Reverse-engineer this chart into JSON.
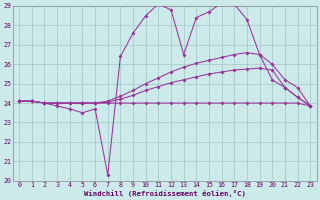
{
  "xlabel": "Windchill (Refroidissement éolien,°C)",
  "bg_color": "#cceaea",
  "grid_color": "#aacccc",
  "line_color": "#993399",
  "xlim": [
    -0.5,
    23.5
  ],
  "ylim": [
    20,
    29
  ],
  "xtick_labels": [
    "0",
    "1",
    "2",
    "3",
    "4",
    "5",
    "6",
    "7",
    "8",
    "9",
    "10",
    "11",
    "12",
    "13",
    "14",
    "15",
    "16",
    "17",
    "18",
    "19",
    "20",
    "21",
    "22",
    "23"
  ],
  "xtick_vals": [
    0,
    1,
    2,
    3,
    4,
    5,
    6,
    7,
    8,
    9,
    10,
    11,
    12,
    13,
    14,
    15,
    16,
    17,
    18,
    19,
    20,
    21,
    22,
    23
  ],
  "yticks": [
    20,
    21,
    22,
    23,
    24,
    25,
    26,
    27,
    28,
    29
  ],
  "series": [
    {
      "x": [
        0,
        1,
        2,
        3,
        4,
        5,
        6,
        7,
        8,
        9,
        10,
        11,
        12,
        13,
        14,
        15,
        16,
        17,
        18,
        19,
        20,
        21,
        22,
        23
      ],
      "y": [
        24.1,
        24.1,
        24.0,
        24.0,
        24.0,
        24.0,
        24.0,
        24.0,
        24.0,
        24.0,
        24.0,
        24.0,
        24.0,
        24.0,
        24.0,
        24.0,
        24.0,
        24.0,
        24.0,
        24.0,
        24.0,
        24.0,
        24.0,
        23.85
      ]
    },
    {
      "x": [
        0,
        1,
        2,
        3,
        4,
        5,
        6,
        7,
        8,
        9,
        10,
        11,
        12,
        13,
        14,
        15,
        16,
        17,
        18,
        19,
        20,
        21,
        22,
        23
      ],
      "y": [
        24.1,
        24.1,
        24.0,
        23.85,
        23.7,
        23.5,
        23.7,
        20.3,
        26.4,
        27.6,
        28.5,
        29.1,
        28.8,
        26.5,
        28.4,
        28.7,
        29.15,
        29.1,
        28.3,
        26.5,
        25.2,
        24.8,
        24.3,
        23.85
      ]
    },
    {
      "x": [
        0,
        1,
        2,
        3,
        4,
        5,
        6,
        7,
        8,
        9,
        10,
        11,
        12,
        13,
        14,
        15,
        16,
        17,
        18,
        19,
        20,
        21,
        22,
        23
      ],
      "y": [
        24.1,
        24.1,
        24.0,
        24.0,
        24.0,
        24.0,
        24.0,
        24.05,
        24.2,
        24.4,
        24.65,
        24.85,
        25.05,
        25.2,
        25.35,
        25.5,
        25.6,
        25.7,
        25.75,
        25.8,
        25.7,
        24.8,
        24.3,
        23.85
      ]
    },
    {
      "x": [
        0,
        1,
        2,
        3,
        4,
        5,
        6,
        7,
        8,
        9,
        10,
        11,
        12,
        13,
        14,
        15,
        16,
        17,
        18,
        19,
        20,
        21,
        22,
        23
      ],
      "y": [
        24.1,
        24.1,
        24.0,
        24.0,
        24.0,
        24.0,
        24.0,
        24.1,
        24.35,
        24.65,
        25.0,
        25.3,
        25.6,
        25.85,
        26.05,
        26.2,
        26.35,
        26.5,
        26.6,
        26.5,
        26.0,
        25.2,
        24.8,
        23.85
      ]
    }
  ]
}
